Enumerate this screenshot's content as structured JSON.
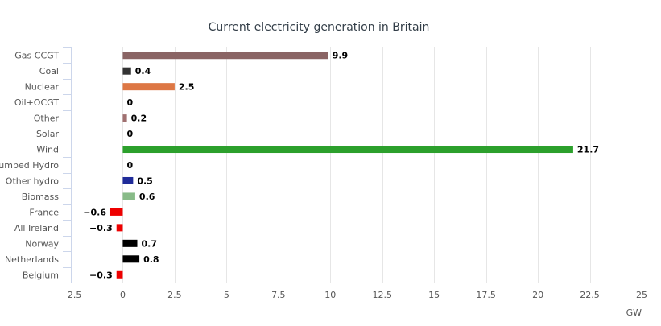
{
  "chart_data": {
    "type": "bar",
    "orientation": "horizontal",
    "title": "Current electricity generation in Britain",
    "xlabel": "GW",
    "ylabel": "",
    "xlim": [
      -2.5,
      25
    ],
    "ticks": [
      "−2.5",
      "0",
      "2.5",
      "5",
      "7.5",
      "10",
      "12.5",
      "15",
      "17.5",
      "20",
      "22.5",
      "25"
    ],
    "tick_values": [
      -2.5,
      0,
      2.5,
      5,
      7.5,
      10,
      12.5,
      15,
      17.5,
      20,
      22.5,
      25
    ],
    "grid": true,
    "legend": "none",
    "categories": [
      "Gas CCGT",
      "Coal",
      "Nuclear",
      "Oil+OCGT",
      "Other",
      "Solar",
      "Wind",
      "Pumped Hydro",
      "Other hydro",
      "Biomass",
      "France",
      "All Ireland",
      "Norway",
      "Netherlands",
      "Belgium"
    ],
    "values": [
      9.9,
      0.4,
      2.5,
      0,
      0.2,
      0,
      21.7,
      0,
      0.5,
      0.6,
      -0.6,
      -0.3,
      0.7,
      0.8,
      -0.3
    ],
    "value_labels": [
      "9.9",
      "0.4",
      "2.5",
      "0",
      "0.2",
      "0",
      "21.7",
      "0",
      "0.5",
      "0.6",
      "−0.6",
      "−0.3",
      "0.7",
      "0.8",
      "−0.3"
    ],
    "colors": [
      "#8a6464",
      "#333333",
      "#dd7744",
      "#aaaaaa",
      "#a07070",
      "#eecc44",
      "#2ca02c",
      "#4477aa",
      "#1f2b99",
      "#88bb88",
      "#ee0000",
      "#ee0000",
      "#000000",
      "#000000",
      "#ee0000"
    ]
  }
}
